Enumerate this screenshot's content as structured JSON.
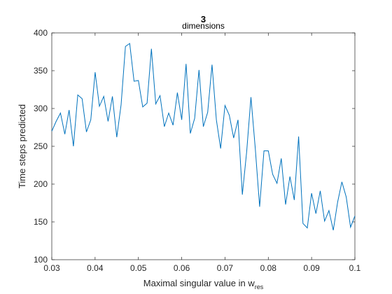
{
  "chart_data": {
    "type": "line",
    "title": "3",
    "subtitle": "dimensions",
    "xlabel": "Maximal singular value in w",
    "xlabel_subscript": "res",
    "ylabel": "Time steps predicted",
    "xlim": [
      0.03,
      0.1
    ],
    "ylim": [
      100,
      400
    ],
    "xticks": [
      0.03,
      0.04,
      0.05,
      0.06,
      0.07,
      0.08,
      0.09,
      0.1
    ],
    "xtick_labels": [
      "0.03",
      "0.04",
      "0.05",
      "0.06",
      "0.07",
      "0.08",
      "0.09",
      "0.1"
    ],
    "yticks": [
      100,
      150,
      200,
      250,
      300,
      350,
      400
    ],
    "ytick_labels": [
      "100",
      "150",
      "200",
      "250",
      "300",
      "350",
      "400"
    ],
    "grid": false,
    "series": [
      {
        "color": "#0072BD",
        "x": [
          0.03,
          0.031,
          0.032,
          0.033,
          0.034,
          0.035,
          0.036,
          0.037,
          0.038,
          0.039,
          0.04,
          0.041,
          0.042,
          0.043,
          0.044,
          0.045,
          0.046,
          0.047,
          0.048,
          0.049,
          0.05,
          0.051,
          0.052,
          0.053,
          0.054,
          0.055,
          0.056,
          0.057,
          0.058,
          0.059,
          0.06,
          0.061,
          0.062,
          0.063,
          0.064,
          0.065,
          0.066,
          0.067,
          0.068,
          0.069,
          0.07,
          0.071,
          0.072,
          0.073,
          0.074,
          0.075,
          0.076,
          0.077,
          0.078,
          0.079,
          0.08,
          0.081,
          0.082,
          0.083,
          0.084,
          0.085,
          0.086,
          0.087,
          0.088,
          0.089,
          0.09,
          0.091,
          0.092,
          0.093,
          0.094,
          0.095,
          0.096,
          0.097,
          0.098,
          0.099,
          0.1
        ],
        "y": [
          270,
          283,
          294,
          266,
          298,
          250,
          318,
          313,
          269,
          285,
          348,
          303,
          316,
          283,
          316,
          262,
          305,
          382,
          386,
          336,
          337,
          302,
          307,
          379,
          306,
          317,
          276,
          294,
          278,
          321,
          285,
          359,
          267,
          287,
          351,
          276,
          295,
          358,
          285,
          247,
          304,
          291,
          261,
          285,
          186,
          243,
          315,
          247,
          170,
          244,
          244,
          213,
          201,
          234,
          173,
          210,
          179,
          263,
          148,
          142,
          188,
          161,
          191,
          151,
          165,
          139,
          176,
          203,
          183,
          143,
          158
        ]
      }
    ]
  }
}
